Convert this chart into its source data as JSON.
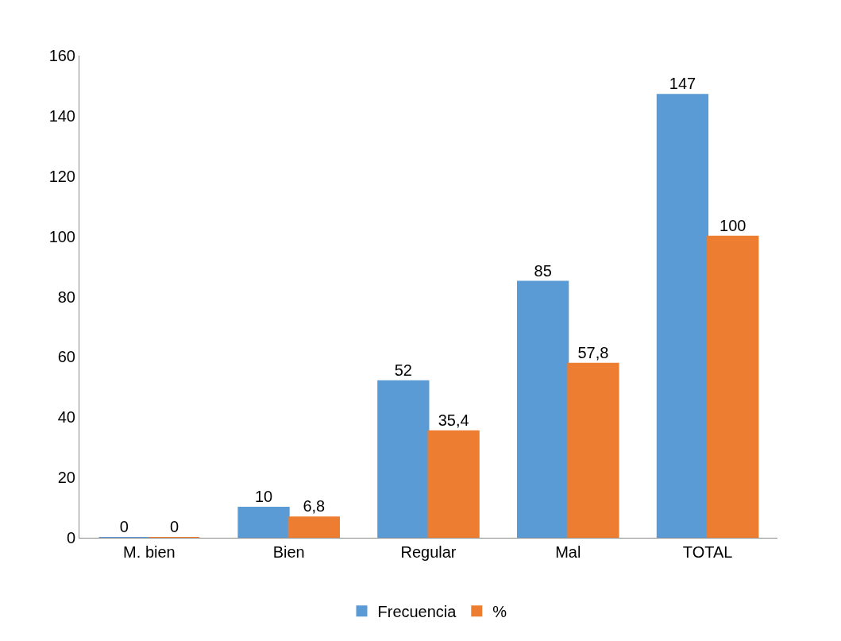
{
  "chart_data": {
    "type": "bar",
    "categories": [
      "M. bien",
      "Bien",
      "Regular",
      "Mal",
      "TOTAL"
    ],
    "series": [
      {
        "name": "Frecuencia",
        "color": "#5b9bd5",
        "values": [
          0,
          10,
          52,
          85,
          147
        ],
        "value_labels": [
          "0",
          "10",
          "52",
          "85",
          "147"
        ]
      },
      {
        "name": "%",
        "color": "#ed7d31",
        "values": [
          0,
          6.8,
          35.4,
          57.8,
          100
        ],
        "value_labels": [
          "0",
          "6,8",
          "35,4",
          "57,8",
          "100"
        ]
      }
    ],
    "ylim": [
      0,
      160
    ],
    "yticks": [
      0,
      20,
      40,
      60,
      80,
      100,
      120,
      140,
      160
    ],
    "legend": "bottom"
  }
}
